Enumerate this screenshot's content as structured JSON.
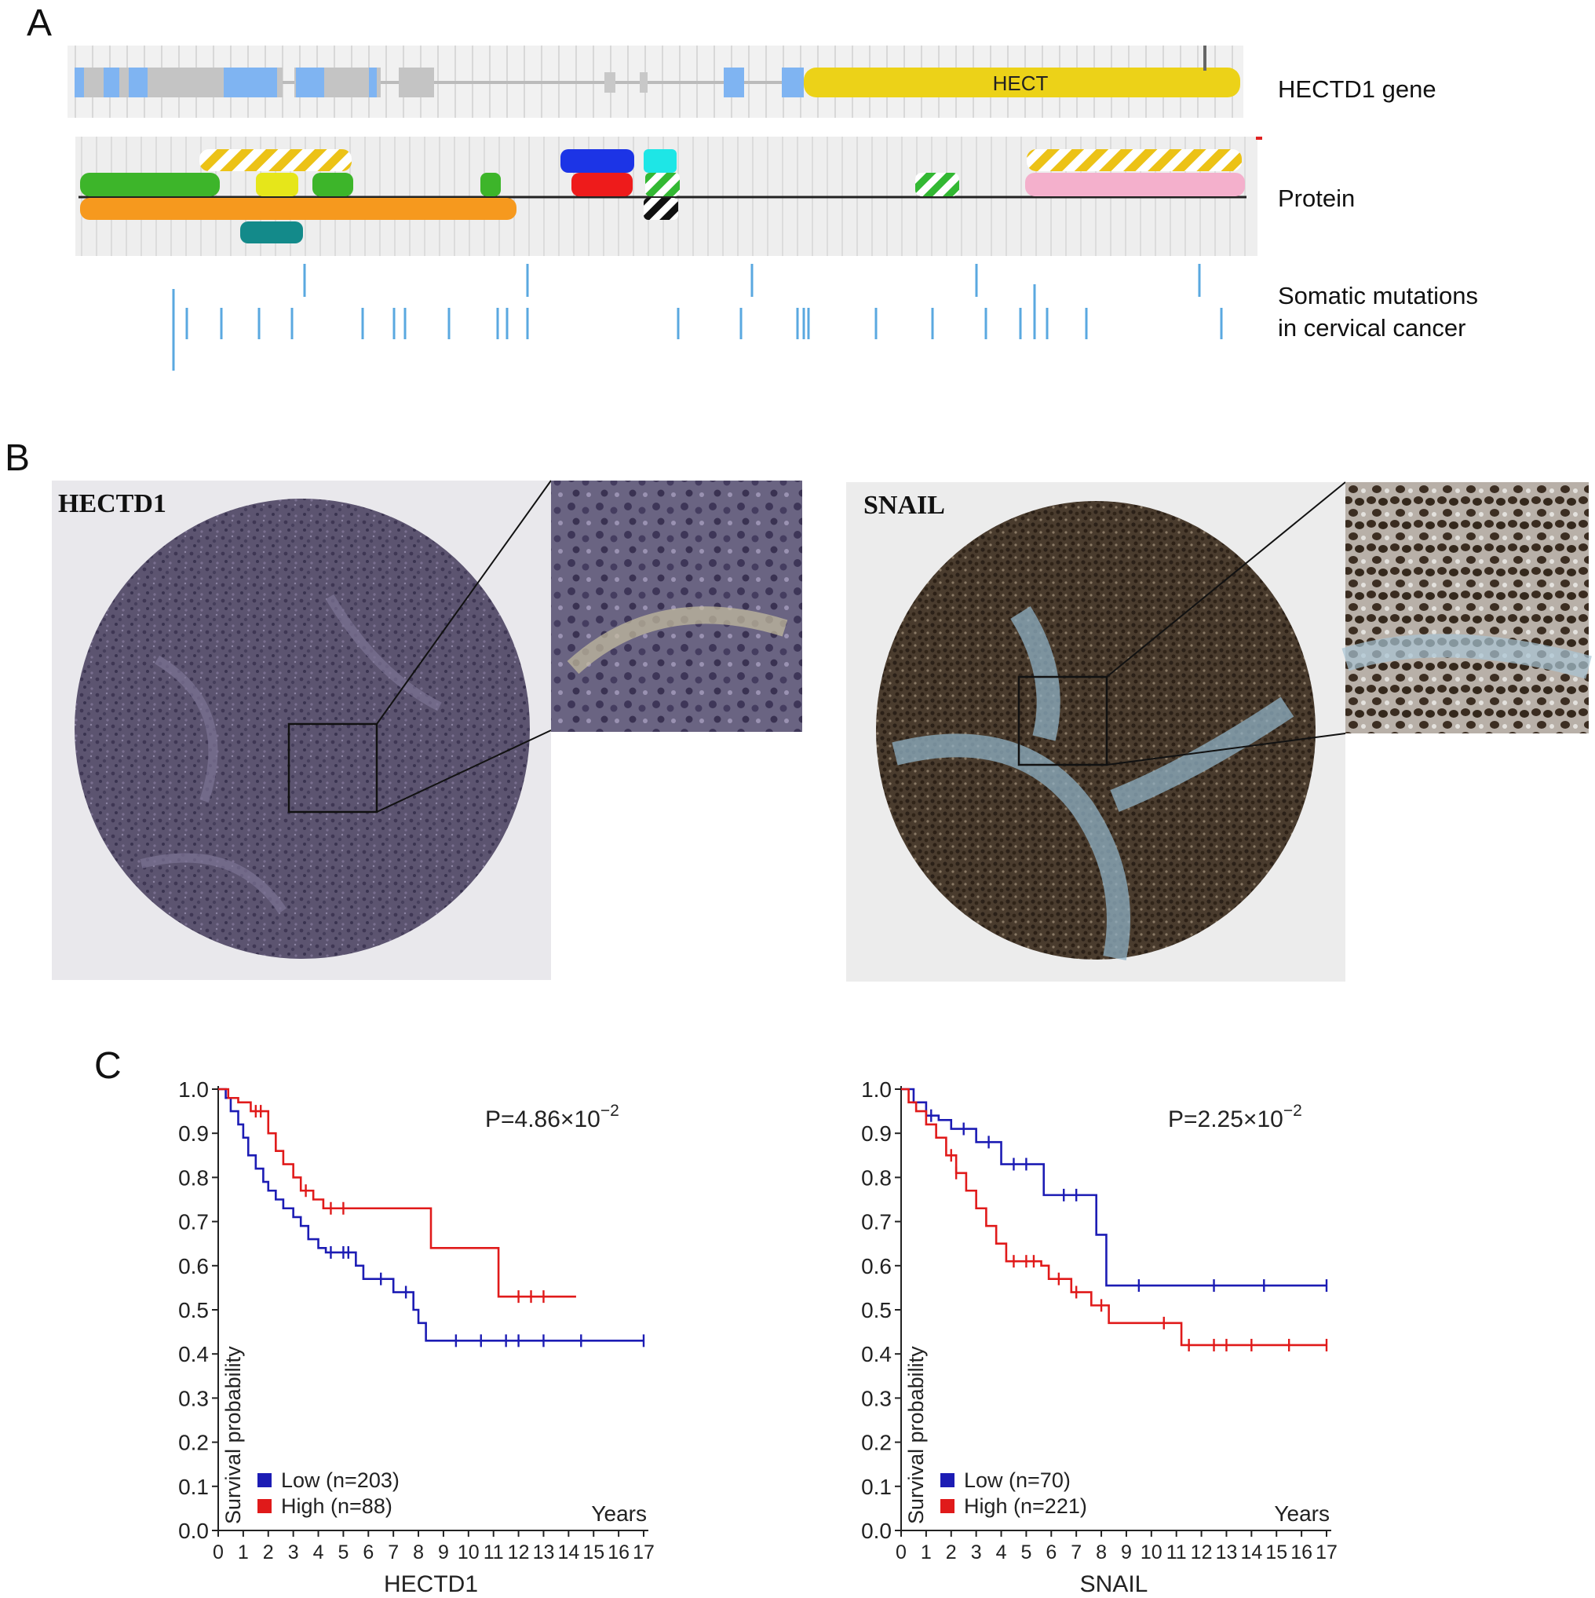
{
  "panels": {
    "a": "A",
    "b": "B",
    "c": "C"
  },
  "panel_a": {
    "domain_label": "HECT",
    "track_labels": {
      "gene": "HECTD1 gene",
      "protein": "Protein",
      "mutations_line1": "Somatic mutations",
      "mutations_line2": "in cervical cancer"
    }
  },
  "panel_b": {
    "left_title": "HECTD1",
    "right_title": "SNAIL"
  },
  "chart_data": [
    {
      "type": "line",
      "xlabel": "HECTD1",
      "ylabel": "Survival probability",
      "x_unit": "Years",
      "pvalue": "P=4.86×10",
      "pvalue_exp": "−2",
      "xlim": [
        0,
        17
      ],
      "ylim": [
        0,
        1
      ],
      "x_ticks": [
        "0",
        "1",
        "2",
        "3",
        "4",
        "5",
        "6",
        "7",
        "8",
        "9",
        "10",
        "11",
        "12",
        "13",
        "14",
        "15",
        "16",
        "17"
      ],
      "y_ticks": [
        "0.0",
        "0.1",
        "0.2",
        "0.3",
        "0.4",
        "0.5",
        "0.6",
        "0.7",
        "0.8",
        "0.9",
        "1.0"
      ],
      "series": [
        {
          "name": "Low (n=203)",
          "color": "#1c1cb4",
          "x": [
            0,
            0.3,
            0.5,
            0.8,
            1.0,
            1.2,
            1.5,
            1.8,
            2.0,
            2.3,
            2.6,
            3.0,
            3.3,
            3.6,
            4.0,
            4.3,
            5.5,
            5.8,
            7.0,
            7.8,
            8.0,
            8.3,
            17.0
          ],
          "y": [
            1.0,
            0.98,
            0.95,
            0.92,
            0.89,
            0.85,
            0.82,
            0.79,
            0.77,
            0.75,
            0.73,
            0.71,
            0.69,
            0.66,
            0.64,
            0.63,
            0.6,
            0.57,
            0.54,
            0.5,
            0.47,
            0.43,
            0.43
          ],
          "censor_x": [
            4.5,
            5.0,
            5.2,
            6.5,
            7.5,
            9.5,
            10.5,
            11.5,
            12.0,
            13.0,
            14.5,
            17.0
          ]
        },
        {
          "name": "High (n=88)",
          "color": "#e01a1a",
          "x": [
            0,
            0.4,
            0.8,
            1.3,
            2.0,
            2.3,
            2.6,
            3.0,
            3.3,
            3.8,
            4.2,
            8.3,
            8.5,
            11.0,
            11.2,
            14.3
          ],
          "y": [
            1.0,
            0.98,
            0.97,
            0.95,
            0.9,
            0.86,
            0.83,
            0.8,
            0.77,
            0.75,
            0.73,
            0.73,
            0.64,
            0.64,
            0.53,
            0.53
          ],
          "censor_x": [
            1.5,
            1.7,
            3.5,
            4.5,
            5.0,
            12.0,
            12.5,
            13.0
          ]
        }
      ]
    },
    {
      "type": "line",
      "xlabel": "SNAIL",
      "ylabel": "Survival probability",
      "x_unit": "Years",
      "pvalue": "P=2.25×10",
      "pvalue_exp": "−2",
      "xlim": [
        0,
        17
      ],
      "ylim": [
        0,
        1
      ],
      "x_ticks": [
        "0",
        "1",
        "2",
        "3",
        "4",
        "5",
        "6",
        "7",
        "8",
        "9",
        "10",
        "11",
        "12",
        "13",
        "14",
        "15",
        "16",
        "17"
      ],
      "y_ticks": [
        "0.0",
        "0.1",
        "0.2",
        "0.3",
        "0.4",
        "0.5",
        "0.6",
        "0.7",
        "0.8",
        "0.9",
        "1.0"
      ],
      "series": [
        {
          "name": "Low (n=70)",
          "color": "#1c1cb4",
          "x": [
            0,
            0.5,
            1.0,
            1.5,
            2.0,
            3.0,
            4.0,
            5.7,
            7.8,
            8.2,
            17.0
          ],
          "y": [
            1.0,
            0.97,
            0.94,
            0.93,
            0.91,
            0.88,
            0.83,
            0.76,
            0.67,
            0.555,
            0.555
          ],
          "censor_x": [
            1.2,
            2.5,
            3.5,
            4.5,
            5.0,
            6.5,
            7.0,
            9.5,
            12.5,
            14.5,
            17.0
          ]
        },
        {
          "name": "High (n=221)",
          "color": "#e01a1a",
          "x": [
            0,
            0.3,
            0.6,
            1.0,
            1.4,
            1.8,
            2.2,
            2.6,
            3.0,
            3.4,
            3.8,
            4.2,
            5.6,
            5.9,
            6.8,
            7.6,
            8.3,
            10.8,
            11.2,
            17.0
          ],
          "y": [
            1.0,
            0.97,
            0.95,
            0.92,
            0.89,
            0.85,
            0.81,
            0.77,
            0.73,
            0.69,
            0.65,
            0.61,
            0.6,
            0.57,
            0.54,
            0.51,
            0.47,
            0.47,
            0.42,
            0.42
          ],
          "censor_x": [
            2.0,
            2.2,
            4.5,
            5.0,
            5.3,
            6.3,
            7.0,
            8.0,
            10.5,
            11.5,
            12.5,
            13.0,
            14.0,
            15.5,
            17.0
          ]
        }
      ]
    }
  ]
}
